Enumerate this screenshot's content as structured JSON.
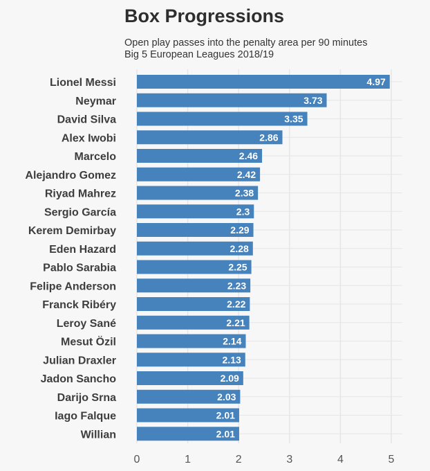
{
  "header": {
    "title": "Box Progressions",
    "subtitle_line1": "Open play passes into the penalty area per 90 minutes",
    "subtitle_line2": "Big 5 European Leagues 2018/19"
  },
  "colors": {
    "bar": "#4682bb",
    "background": "#f7f7f7",
    "grid": "#e6e6e6"
  },
  "chart_data": {
    "type": "bar",
    "orientation": "horizontal",
    "title": "Box Progressions",
    "subtitle": "Open play passes into the penalty area per 90 minutes / Big 5 European Leagues 2018/19",
    "xlabel": "",
    "ylabel": "",
    "xlim": [
      0,
      5
    ],
    "xticks": [
      0,
      1,
      2,
      3,
      4,
      5
    ],
    "grid": true,
    "categories": [
      "Lionel Messi",
      "Neymar",
      "David Silva",
      "Alex Iwobi",
      "Marcelo",
      "Alejandro Gomez",
      "Riyad Mahrez",
      "Sergio García",
      "Kerem Demirbay",
      "Eden Hazard",
      "Pablo Sarabia",
      "Felipe Anderson",
      "Franck Ribéry",
      "Leroy Sané",
      "Mesut Özil",
      "Julian Draxler",
      "Jadon Sancho",
      "Darijo Srna",
      "Iago Falque",
      "Willian"
    ],
    "values": [
      4.97,
      3.73,
      3.35,
      2.86,
      2.46,
      2.42,
      2.38,
      2.3,
      2.29,
      2.28,
      2.25,
      2.23,
      2.22,
      2.21,
      2.14,
      2.13,
      2.09,
      2.03,
      2.01,
      2.01
    ],
    "value_labels": [
      "4.97",
      "3.73",
      "3.35",
      "2.86",
      "2.46",
      "2.42",
      "2.38",
      "2.3",
      "2.29",
      "2.28",
      "2.25",
      "2.23",
      "2.22",
      "2.21",
      "2.14",
      "2.13",
      "2.09",
      "2.03",
      "2.01",
      "2.01"
    ]
  }
}
